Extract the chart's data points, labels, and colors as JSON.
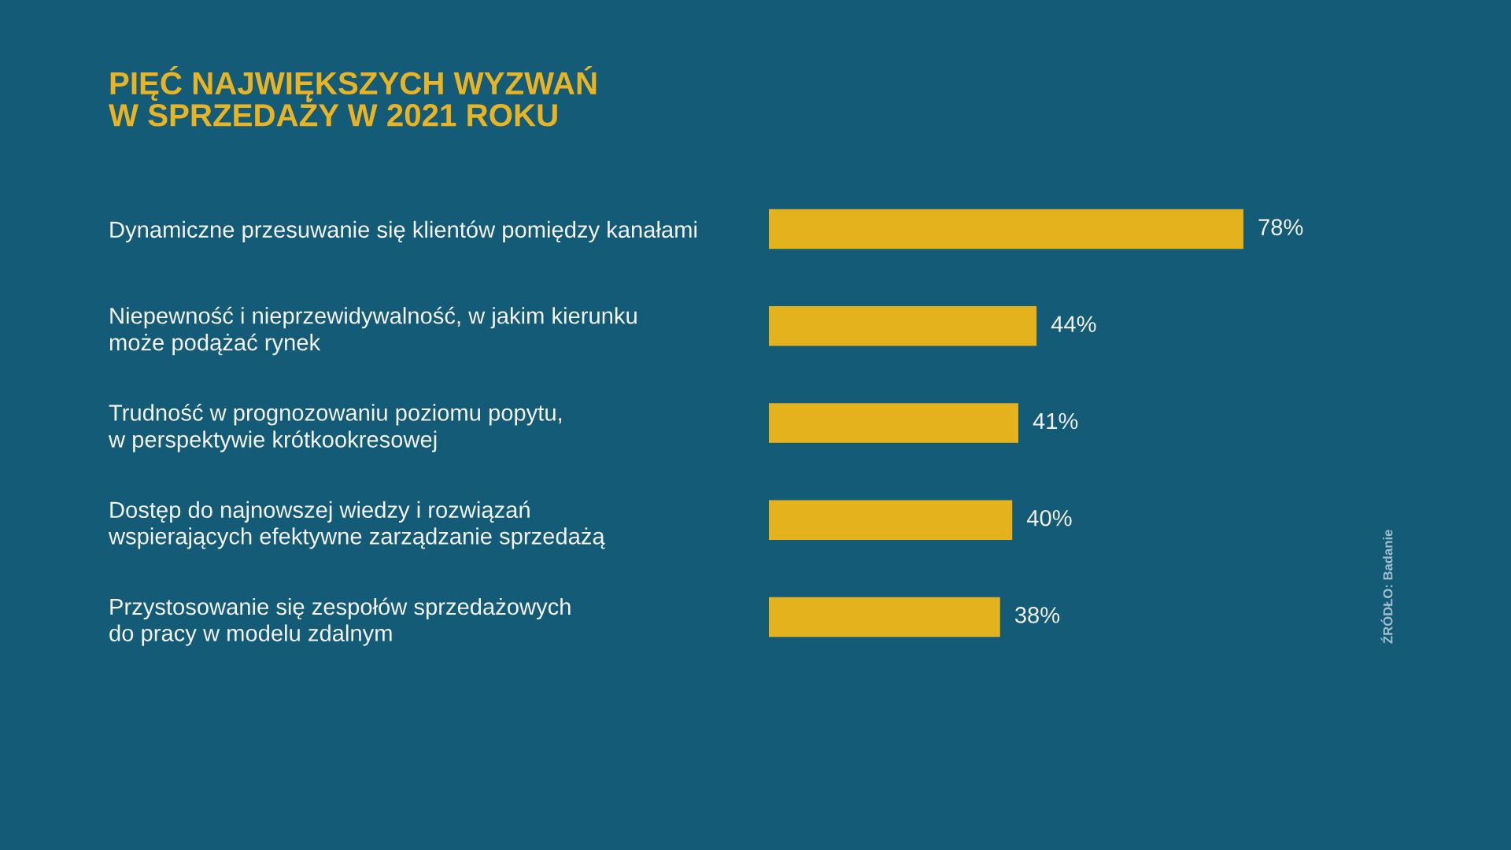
{
  "chart_data": {
    "type": "bar",
    "orientation": "horizontal",
    "title": "PIĘĆ NAJWIĘKSZYCH WYZWAŃ\nW SPRZEDAŻY W 2021 ROKU",
    "categories": [
      "Dynamiczne przesuwanie się klientów pomiędzy kanałami",
      "Niepewność i nieprzewidywalność, w jakim kierunku\nmoże podążać rynek",
      "Trudność w prognozowaniu poziomu popytu,\nw perspektywie krótkookresowej",
      "Dostęp do najnowszej wiedzy i rozwiązań\nwspierających efektywne zarządzanie sprzedażą",
      "Przystosowanie się zespołów sprzedażowych\ndo pracy w modelu zdalnym"
    ],
    "values": [
      78,
      44,
      41,
      40,
      38
    ],
    "value_labels": [
      "78%",
      "44%",
      "41%",
      "40%",
      "38%"
    ],
    "color": "#e3b21c",
    "tick_labels": "y",
    "annotations": [
      "ŹRÓDŁO: Badanie"
    ]
  }
}
